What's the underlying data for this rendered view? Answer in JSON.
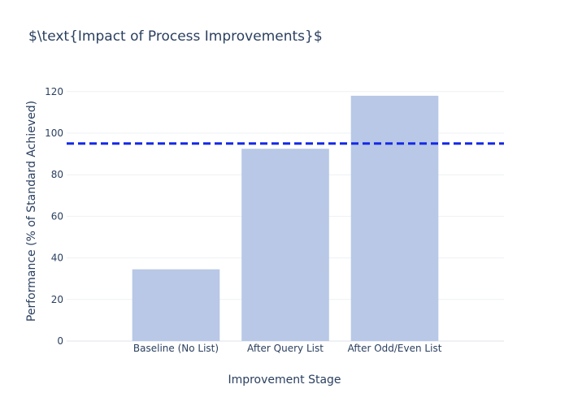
{
  "chart_data": {
    "type": "bar",
    "title": "$\\text{Impact of Process Improvements}$",
    "xlabel": "Improvement Stage",
    "ylabel": "Performance (% of Standard Achieved)",
    "categories": [
      "Baseline (No List)",
      "After Query List",
      "After Odd/Even List"
    ],
    "values": [
      34.5,
      92.5,
      118
    ],
    "ylim": [
      0,
      125
    ],
    "yticks": [
      0,
      20,
      40,
      60,
      80,
      100,
      120
    ],
    "reference_line": {
      "y": 95,
      "style": "dashed",
      "color": "#1428e6"
    },
    "bar_color": "#b8c8e6",
    "grid": true,
    "legend": "none"
  }
}
